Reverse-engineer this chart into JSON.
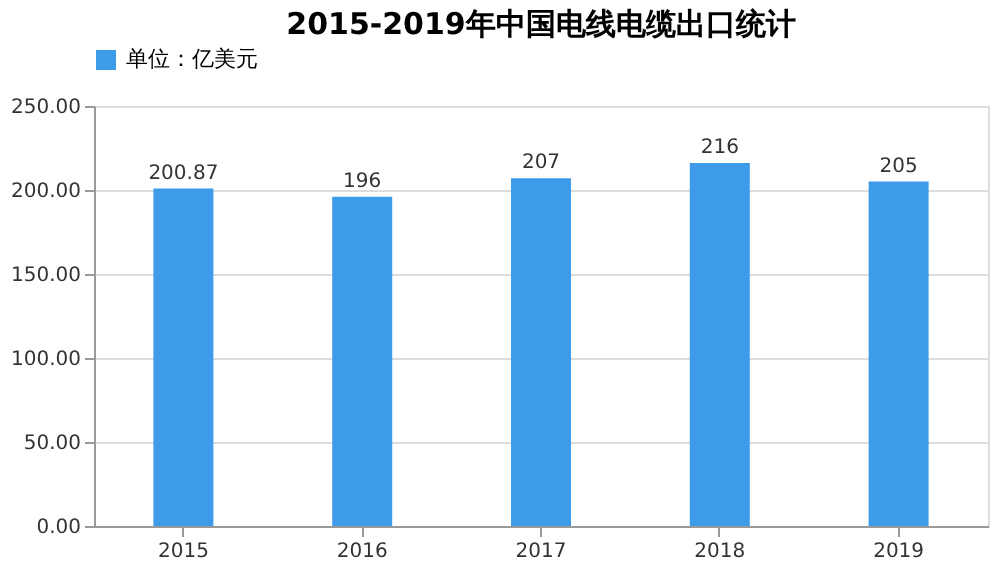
{
  "chart_data": {
    "type": "bar",
    "title": "2015-2019年中国电线电缆出口统计",
    "categories": [
      "2015",
      "2016",
      "2017",
      "2018",
      "2019"
    ],
    "series": [
      {
        "name": "单位：亿美元",
        "color": "#3d9be9",
        "values": [
          200.87,
          196,
          207,
          216,
          205
        ]
      }
    ],
    "ylim": [
      0,
      250
    ],
    "yticks": [
      {
        "value": 0,
        "label": "0.00"
      },
      {
        "value": 50,
        "label": "50.00"
      },
      {
        "value": 100,
        "label": "100.00"
      },
      {
        "value": 150,
        "label": "150.00"
      },
      {
        "value": 200,
        "label": "200.00"
      },
      {
        "value": 250,
        "label": "250.00"
      }
    ],
    "grid": "y",
    "legend": "top",
    "data_labels": true
  }
}
